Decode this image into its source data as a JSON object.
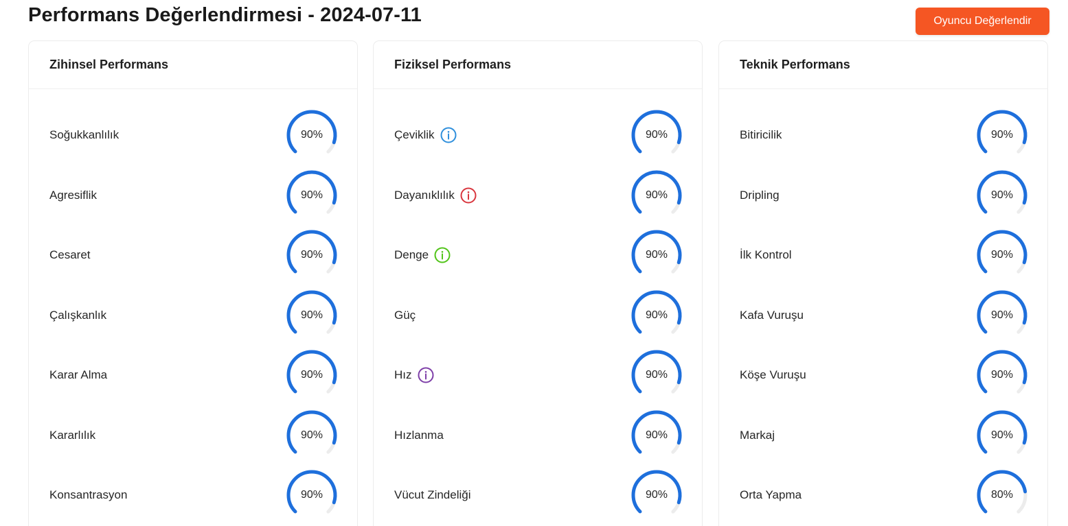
{
  "header": {
    "title": "Performans Değerlendirmesi - 2024-07-11",
    "evaluate_button": "Oyuncu Değerlendir"
  },
  "colors": {
    "accent": "#f55623",
    "gauge": "#1e6fdc",
    "gauge_track": "#ececec",
    "info_blue": "#2f8fdc",
    "info_red": "#d9363e",
    "info_green": "#52c41a",
    "info_purple": "#7e3fa8"
  },
  "cards": [
    {
      "title": "Zihinsel Performans",
      "items": [
        {
          "label": "Soğukkanlılık",
          "value": 90,
          "display": "90%"
        },
        {
          "label": "Agresiflik",
          "value": 90,
          "display": "90%"
        },
        {
          "label": "Cesaret",
          "value": 90,
          "display": "90%"
        },
        {
          "label": "Çalışkanlık",
          "value": 90,
          "display": "90%"
        },
        {
          "label": "Karar Alma",
          "value": 90,
          "display": "90%"
        },
        {
          "label": "Kararlılık",
          "value": 90,
          "display": "90%"
        },
        {
          "label": "Konsantrasyon",
          "value": 90,
          "display": "90%"
        }
      ]
    },
    {
      "title": "Fiziksel Performans",
      "items": [
        {
          "label": "Çeviklik",
          "value": 90,
          "display": "90%",
          "info_icon": "info-icon",
          "info_color": "#2f8fdc"
        },
        {
          "label": "Dayanıklılık",
          "value": 90,
          "display": "90%",
          "info_icon": "info-icon",
          "info_color": "#d9363e"
        },
        {
          "label": "Denge",
          "value": 90,
          "display": "90%",
          "info_icon": "info-icon",
          "info_color": "#52c41a"
        },
        {
          "label": "Güç",
          "value": 90,
          "display": "90%"
        },
        {
          "label": "Hız",
          "value": 90,
          "display": "90%",
          "info_icon": "info-icon",
          "info_color": "#7e3fa8"
        },
        {
          "label": "Hızlanma",
          "value": 90,
          "display": "90%"
        },
        {
          "label": "Vücut Zindeliği",
          "value": 90,
          "display": "90%"
        }
      ]
    },
    {
      "title": "Teknik Performans",
      "items": [
        {
          "label": "Bitiricilik",
          "value": 90,
          "display": "90%"
        },
        {
          "label": "Dripling",
          "value": 90,
          "display": "90%"
        },
        {
          "label": "İlk Kontrol",
          "value": 90,
          "display": "90%"
        },
        {
          "label": "Kafa Vuruşu",
          "value": 90,
          "display": "90%"
        },
        {
          "label": "Köşe Vuruşu",
          "value": 90,
          "display": "90%"
        },
        {
          "label": "Markaj",
          "value": 90,
          "display": "90%"
        },
        {
          "label": "Orta Yapma",
          "value": 80,
          "display": "80%"
        }
      ]
    }
  ]
}
